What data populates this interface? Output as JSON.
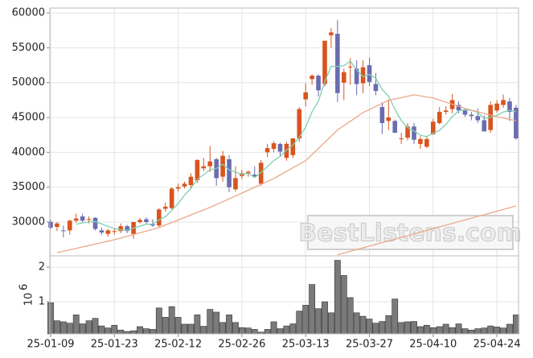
{
  "chart_data": [
    {
      "type": "candlestick",
      "open": [
        30000,
        29300,
        28800,
        28800,
        30200,
        30800,
        30400,
        30600,
        28800,
        28300,
        28600,
        28700,
        29400,
        28300,
        30000,
        30400,
        29700,
        29500,
        31900,
        32000,
        34800,
        35100,
        35300,
        36000,
        37700,
        38000,
        39000,
        36500,
        39000,
        34700,
        36600,
        37000,
        36800,
        35500,
        40000,
        40500,
        41200,
        39200,
        39600,
        42000,
        47600,
        50500,
        51000,
        49800,
        56800,
        57000,
        50000,
        52200,
        52000,
        49900,
        52500,
        49800,
        46500,
        44500,
        44500,
        42000,
        42100,
        43700,
        41200,
        40800,
        42600,
        44200,
        45800,
        46200,
        46800,
        46000,
        45400,
        45200,
        44600,
        43200,
        46000,
        46800,
        47300,
        46400
      ],
      "high": [
        30300,
        30000,
        29500,
        30300,
        31200,
        31200,
        30800,
        30700,
        29200,
        29000,
        29100,
        29800,
        29600,
        30000,
        30600,
        30700,
        30400,
        32000,
        32800,
        35000,
        35500,
        35800,
        37000,
        39000,
        39200,
        40900,
        39200,
        40200,
        39600,
        38000,
        37500,
        37400,
        38000,
        38900,
        41200,
        41600,
        41400,
        41500,
        42000,
        46500,
        49900,
        51200,
        51200,
        56000,
        57800,
        59000,
        52000,
        53500,
        53200,
        53200,
        53600,
        51400,
        47200,
        47600,
        44700,
        42800,
        44200,
        44200,
        42300,
        42200,
        44800,
        46500,
        46600,
        48400,
        47300,
        46200,
        45800,
        46300,
        45300,
        47300,
        47500,
        48300,
        47800,
        46800
      ],
      "low": [
        29000,
        28700,
        27800,
        28200,
        29900,
        30000,
        29800,
        28800,
        28200,
        27900,
        28200,
        28400,
        28400,
        27600,
        29800,
        29700,
        29300,
        29300,
        31500,
        31800,
        34400,
        34800,
        34800,
        35600,
        37300,
        37200,
        35200,
        35800,
        34300,
        34400,
        36200,
        36500,
        36300,
        35200,
        39300,
        40000,
        39400,
        38800,
        39200,
        41500,
        46600,
        49700,
        48000,
        49500,
        55000,
        47200,
        47500,
        49700,
        48200,
        48500,
        49500,
        48200,
        42600,
        43200,
        42800,
        41200,
        41700,
        41200,
        40500,
        40600,
        42500,
        44000,
        45400,
        45600,
        45600,
        45100,
        44600,
        44200,
        43000,
        42800,
        45700,
        46400,
        44500,
        41800
      ],
      "close": [
        29200,
        29800,
        28700,
        30200,
        30500,
        30200,
        30400,
        29000,
        28500,
        28800,
        28700,
        29400,
        28700,
        30000,
        30300,
        30000,
        29500,
        31800,
        32200,
        34800,
        35000,
        35500,
        36500,
        38900,
        38000,
        38700,
        36300,
        39500,
        35000,
        36300,
        37000,
        37200,
        36500,
        38500,
        40600,
        41300,
        40100,
        41200,
        42000,
        46200,
        48600,
        51000,
        48900,
        56000,
        57200,
        48500,
        51500,
        52300,
        49800,
        52200,
        50100,
        48800,
        44200,
        45000,
        42800,
        42000,
        43700,
        41800,
        41900,
        41900,
        44400,
        45800,
        46000,
        47500,
        46000,
        45400,
        45200,
        44600,
        43000,
        46800,
        47000,
        47500,
        45800,
        42000
      ],
      "up_color": "#d9541e",
      "down_color": "#6a6cb0",
      "series": [
        {
          "color": "#7fcfb4",
          "values": [
            null,
            null,
            null,
            null,
            29680,
            29880,
            30000,
            30060,
            29720,
            29380,
            29080,
            28880,
            28820,
            29120,
            29420,
            29680,
            29700,
            30320,
            30760,
            31660,
            32660,
            33860,
            34800,
            36140,
            36780,
            37520,
            37680,
            38280,
            37500,
            37160,
            36820,
            37000,
            36400,
            37100,
            37960,
            38820,
            39400,
            40340,
            41040,
            42160,
            43620,
            45800,
            47340,
            50140,
            52340,
            52320,
            52420,
            53100,
            51860,
            50860,
            51180,
            50640,
            49020,
            48060,
            46180,
            44560,
            43540,
            43060,
            42440,
            42260,
            42740,
            43160,
            44000,
            45120,
            45940,
            46140,
            46020,
            45740,
            44840,
            45000,
            45320,
            45780,
            46020,
            45820
          ]
        },
        {
          "color": "#eba98a",
          "values": [
            null,
            25600,
            25810,
            26010,
            26220,
            26430,
            26630,
            26840,
            27050,
            27250,
            27460,
            27710,
            27960,
            28210,
            28450,
            28700,
            28950,
            29200,
            29560,
            29930,
            30290,
            30650,
            31010,
            31380,
            31740,
            32100,
            32510,
            32920,
            33330,
            33740,
            34150,
            34570,
            34990,
            35400,
            35820,
            36240,
            36750,
            37260,
            37780,
            38290,
            38800,
            39680,
            40560,
            41440,
            42320,
            43200,
            43830,
            44450,
            45080,
            45700,
            46140,
            46580,
            47010,
            47450,
            47650,
            47850,
            48050,
            48250,
            48100,
            47950,
            47800,
            47500,
            47200,
            46900,
            46600,
            46300,
            46060,
            45820,
            45580,
            45340,
            45100,
            44920,
            44730,
            44550
          ]
        },
        {
          "color": "#eba98a",
          "values": [
            null,
            null,
            null,
            null,
            null,
            null,
            null,
            null,
            null,
            null,
            null,
            null,
            null,
            null,
            null,
            null,
            null,
            null,
            null,
            null,
            null,
            null,
            null,
            null,
            null,
            null,
            null,
            null,
            null,
            null,
            null,
            null,
            null,
            null,
            null,
            null,
            null,
            null,
            null,
            null,
            null,
            null,
            null,
            null,
            null,
            25300,
            25550,
            25800,
            26050,
            26300,
            26550,
            26800,
            27050,
            27300,
            27550,
            27800,
            28050,
            28300,
            28550,
            28800,
            29050,
            29300,
            29550,
            29800,
            30050,
            30300,
            30550,
            30800,
            31050,
            31300,
            31550,
            31800,
            32050,
            32300
          ]
        }
      ],
      "ylim": [
        25150,
        60700
      ],
      "yticks": [
        30000,
        35000,
        40000,
        45000,
        50000,
        55000,
        60000
      ],
      "grid": true,
      "watermark": "BestListens.com"
    },
    {
      "type": "bar",
      "categories": [
        "25-01-09",
        null,
        null,
        null,
        null,
        null,
        null,
        null,
        null,
        null,
        "25-01-23",
        null,
        null,
        null,
        null,
        null,
        null,
        null,
        null,
        null,
        "25-02-12",
        null,
        null,
        null,
        null,
        null,
        null,
        null,
        null,
        null,
        "25-02-26",
        null,
        null,
        null,
        null,
        null,
        null,
        null,
        null,
        null,
        "25-03-13",
        null,
        null,
        null,
        null,
        null,
        null,
        null,
        null,
        null,
        "25-03-27",
        null,
        null,
        null,
        null,
        null,
        null,
        null,
        null,
        null,
        "25-04-10",
        null,
        null,
        null,
        null,
        null,
        null,
        null,
        null,
        null,
        "25-04-24",
        null,
        null,
        null
      ],
      "values": [
        0.97,
        0.45,
        0.42,
        0.38,
        0.62,
        0.36,
        0.45,
        0.52,
        0.3,
        0.24,
        0.32,
        0.18,
        0.14,
        0.16,
        0.28,
        0.22,
        0.2,
        0.82,
        0.55,
        0.86,
        0.55,
        0.35,
        0.35,
        0.62,
        0.29,
        0.78,
        0.7,
        0.4,
        0.62,
        0.4,
        0.25,
        0.24,
        0.2,
        0.12,
        0.2,
        0.42,
        0.22,
        0.3,
        0.36,
        0.73,
        0.9,
        1.5,
        0.8,
        1.0,
        0.68,
        2.2,
        1.76,
        1.12,
        0.68,
        0.58,
        0.5,
        0.38,
        0.43,
        0.6,
        1.08,
        0.4,
        0.42,
        0.43,
        0.28,
        0.32,
        0.25,
        0.28,
        0.35,
        0.25,
        0.36,
        0.22,
        0.18,
        0.22,
        0.24,
        0.3,
        0.27,
        0.24,
        0.35,
        0.62
      ],
      "color": "#7a7a7a",
      "ylim": [
        0.07,
        2.33
      ],
      "yticks": [
        1,
        2
      ],
      "grid": true,
      "y_offset_label": {
        "base": "10",
        "exponent": "6"
      }
    }
  ]
}
